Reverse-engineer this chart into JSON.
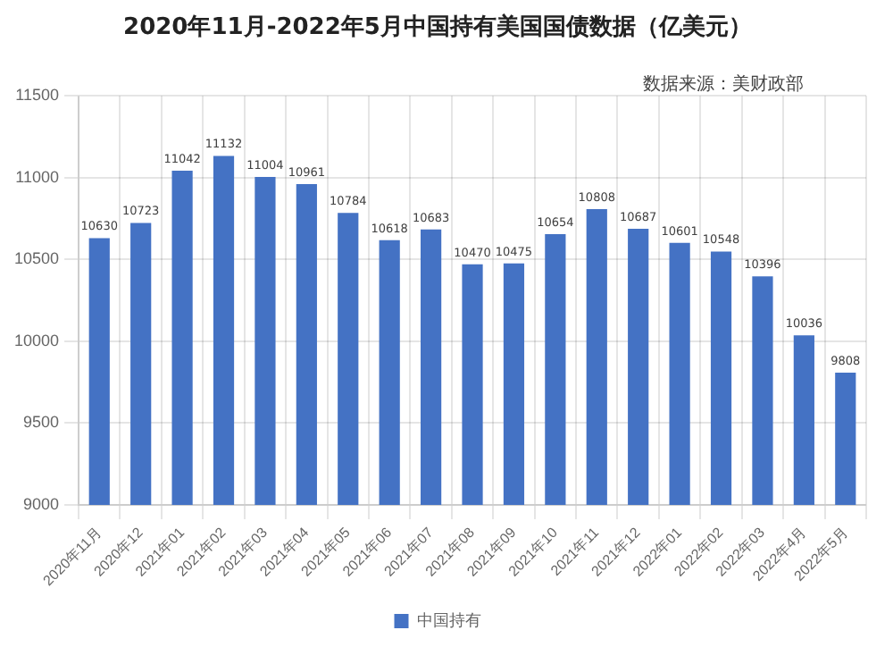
{
  "chart_data": {
    "type": "bar",
    "title": "2020年11月-2022年5月中国持有美国国债数据（亿美元）",
    "categories": [
      "2020年11月",
      "2020年12",
      "2021年01",
      "2021年02",
      "2021年03",
      "2021年04",
      "2021年05",
      "2021年06",
      "2021年07",
      "2021年08",
      "2021年09",
      "2021年10",
      "2021年11",
      "2021年12",
      "2022年01",
      "2022年02",
      "2022年03",
      "2022年4月",
      "2022年5月"
    ],
    "series": [
      {
        "name": "中国持有",
        "color": "#4472c4",
        "values": [
          10630,
          10723,
          11042,
          11132,
          11004,
          10961,
          10784,
          10618,
          10683,
          10470,
          10475,
          10654,
          10808,
          10687,
          10601,
          10548,
          10396,
          10036,
          9808
        ]
      }
    ],
    "ylim": [
      9000,
      11500
    ],
    "yticks": [
      9000,
      9500,
      10000,
      10500,
      11000,
      11500
    ],
    "grid": true,
    "legend": "bottom",
    "data_labels": true,
    "annotations": [
      "数据来源：美财政部"
    ]
  }
}
